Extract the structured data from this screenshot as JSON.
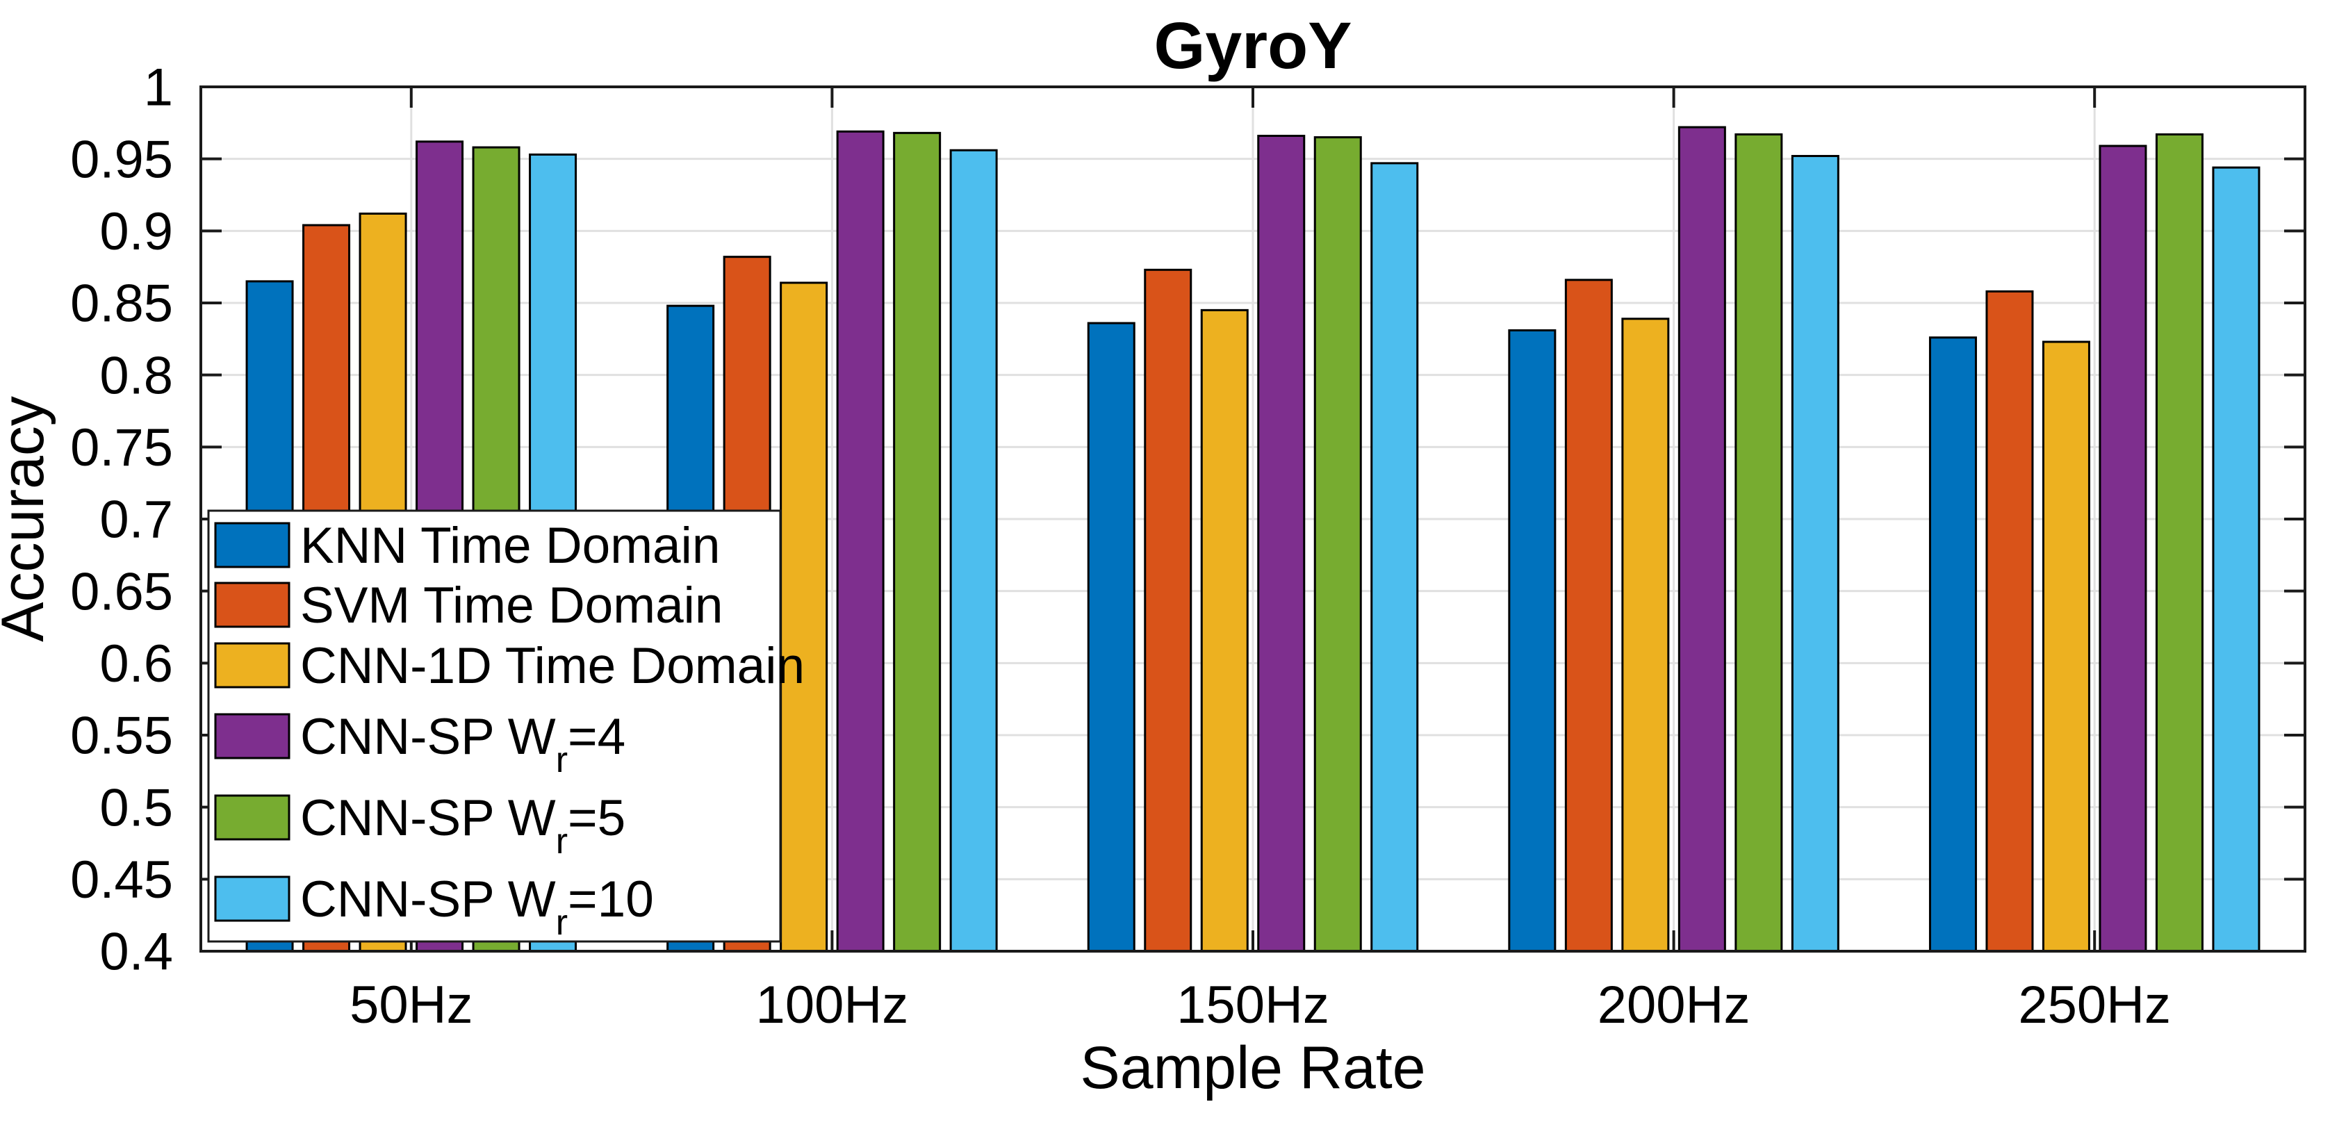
{
  "chart_data": {
    "type": "bar",
    "title": "GyroY",
    "xlabel": "Sample Rate",
    "ylabel": "Accuracy",
    "categories": [
      "50Hz",
      "100Hz",
      "150Hz",
      "200Hz",
      "250Hz"
    ],
    "series": [
      {
        "name": "KNN Time Domain",
        "label_parts": [
          "KNN Time Domain",
          "",
          ""
        ],
        "color": "#0072BD",
        "values": [
          0.865,
          0.848,
          0.836,
          0.831,
          0.826
        ]
      },
      {
        "name": "SVM Time Domain",
        "label_parts": [
          "SVM Time Domain",
          "",
          ""
        ],
        "color": "#D95319",
        "values": [
          0.904,
          0.882,
          0.873,
          0.866,
          0.858
        ]
      },
      {
        "name": "CNN-1D Time Domain",
        "label_parts": [
          "CNN-1D Time Domain",
          "",
          ""
        ],
        "color": "#EDB120",
        "values": [
          0.912,
          0.864,
          0.845,
          0.839,
          0.823
        ]
      },
      {
        "name": "CNN-SP Wr=4",
        "label_parts": [
          "CNN-SP W",
          "r",
          "=4"
        ],
        "color": "#7E2F8E",
        "values": [
          0.962,
          0.969,
          0.966,
          0.972,
          0.959
        ]
      },
      {
        "name": "CNN-SP Wr=5",
        "label_parts": [
          "CNN-SP W",
          "r",
          "=5"
        ],
        "color": "#77AC30",
        "values": [
          0.958,
          0.968,
          0.965,
          0.967,
          0.967
        ]
      },
      {
        "name": "CNN-SP Wr=10",
        "label_parts": [
          "CNN-SP W",
          "r",
          "=10"
        ],
        "color": "#4DBEEE",
        "values": [
          0.953,
          0.956,
          0.947,
          0.952,
          0.944
        ]
      }
    ],
    "ylim": [
      0.4,
      1.0
    ],
    "yticks": [
      0.4,
      0.45,
      0.5,
      0.55,
      0.6,
      0.65,
      0.7,
      0.75,
      0.8,
      0.85,
      0.9,
      0.95,
      1.0
    ],
    "ytick_labels": [
      "0.4",
      "0.45",
      "0.5",
      "0.55",
      "0.6",
      "0.65",
      "0.7",
      "0.75",
      "0.8",
      "0.85",
      "0.9",
      "0.95",
      "1"
    ],
    "grid": true,
    "legend_position": "lower-left",
    "colors": {
      "bar_edge": "#000000",
      "grid_line": "#e0e0e0",
      "axis_frame": "#1a1a1a",
      "legend_border": "#1a1a1a",
      "legend_background": "#ffffff",
      "background": "#ffffff"
    }
  }
}
